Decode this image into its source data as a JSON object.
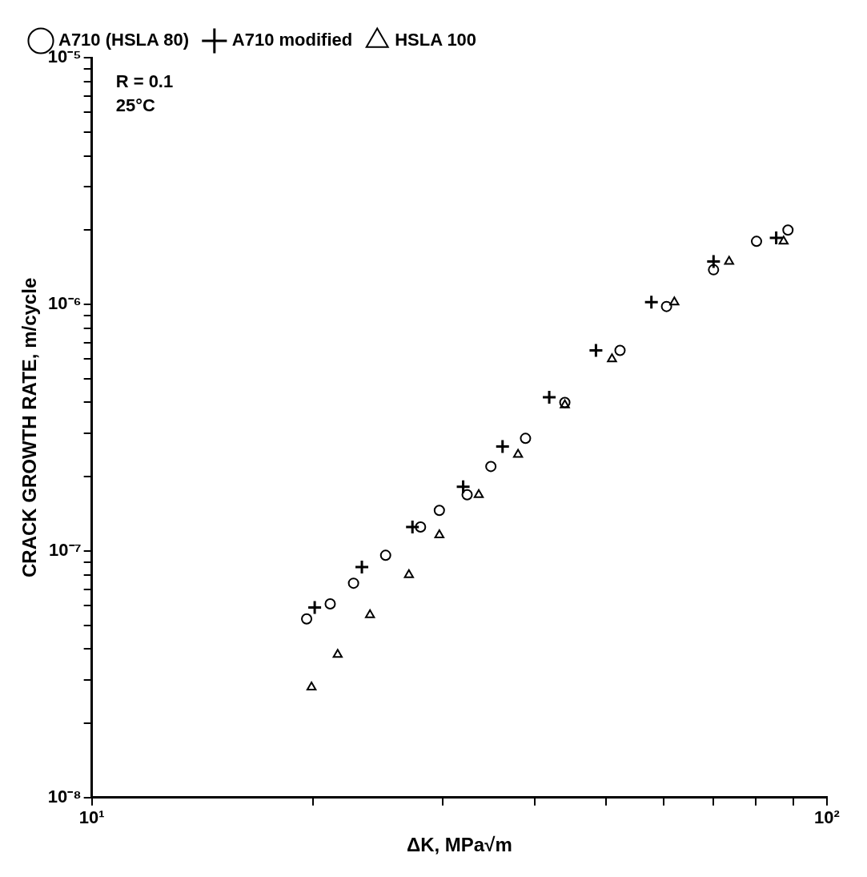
{
  "chart_data": {
    "type": "scatter",
    "xlabel": "ΔK, MPa√m",
    "ylabel": "CRACK GROWTH RATE, m/cycle",
    "log": "xy",
    "grid": false,
    "legend": "top left",
    "xlim": [
      10,
      100
    ],
    "xticks": [
      {
        "value": 10,
        "label": "10¹"
      },
      {
        "value": 20,
        "label": null
      },
      {
        "value": 30,
        "label": null
      },
      {
        "value": 40,
        "label": null
      },
      {
        "value": 50,
        "label": null
      },
      {
        "value": 60,
        "label": null
      },
      {
        "value": 70,
        "label": null
      },
      {
        "value": 80,
        "label": null
      },
      {
        "value": 90,
        "label": null
      },
      {
        "value": 100,
        "label": "10²"
      }
    ],
    "ylim": [
      1e-08,
      1e-05
    ],
    "yticks": [
      {
        "value": 1e-08,
        "label": "10⁻⁸"
      },
      {
        "value": 2e-08,
        "label": null
      },
      {
        "value": 3e-08,
        "label": null
      },
      {
        "value": 4e-08,
        "label": null
      },
      {
        "value": 5e-08,
        "label": null
      },
      {
        "value": 6e-08,
        "label": null
      },
      {
        "value": 7e-08,
        "label": null
      },
      {
        "value": 8e-08,
        "label": null
      },
      {
        "value": 9e-08,
        "label": null
      },
      {
        "value": 1e-07,
        "label": "10⁻⁷"
      },
      {
        "value": 2e-07,
        "label": null
      },
      {
        "value": 3e-07,
        "label": null
      },
      {
        "value": 4e-07,
        "label": null
      },
      {
        "value": 5e-07,
        "label": null
      },
      {
        "value": 6e-07,
        "label": null
      },
      {
        "value": 7e-07,
        "label": null
      },
      {
        "value": 8e-07,
        "label": null
      },
      {
        "value": 9e-07,
        "label": null
      },
      {
        "value": 1e-06,
        "label": "10⁻⁶"
      },
      {
        "value": 2e-06,
        "label": null
      },
      {
        "value": 3e-06,
        "label": null
      },
      {
        "value": 4e-06,
        "label": null
      },
      {
        "value": 5e-06,
        "label": null
      },
      {
        "value": 6e-06,
        "label": null
      },
      {
        "value": 7e-06,
        "label": null
      },
      {
        "value": 8e-06,
        "label": null
      },
      {
        "value": 9e-06,
        "label": null
      },
      {
        "value": 1e-05,
        "label": "10⁻⁵"
      }
    ],
    "annotations": [
      "R = 0.1",
      "25°C"
    ],
    "series": [
      {
        "name": "A710 (HSLA 80)",
        "color": "#000000",
        "marker": "circle",
        "x": [
          19.6,
          21.1,
          22.7,
          25.1,
          28.0,
          29.7,
          32.4,
          34.9,
          38.9,
          44.0,
          52.3,
          60.5,
          70.1,
          80.2,
          88.5
        ],
        "values": [
          5.3e-08,
          6.1e-08,
          7.4e-08,
          9.6e-08,
          1.25e-07,
          1.46e-07,
          1.69e-07,
          2.2e-07,
          2.86e-07,
          4e-07,
          6.5e-07,
          9.8e-07,
          1.38e-06,
          1.8e-06,
          2e-06
        ]
      },
      {
        "name": "A710 modified",
        "color": "#000000",
        "marker": "cross",
        "x": [
          20.1,
          23.3,
          27.3,
          32.0,
          36.2,
          41.9,
          48.5,
          57.7,
          70.1,
          85.3
        ],
        "values": [
          5.9e-08,
          8.6e-08,
          1.25e-07,
          1.82e-07,
          2.65e-07,
          4.2e-07,
          6.5e-07,
          1.02e-06,
          1.49e-06,
          1.86e-06
        ]
      },
      {
        "name": "HSLA 100",
        "color": "#000000",
        "marker": "triangle",
        "x": [
          19.9,
          21.6,
          23.9,
          27.0,
          29.7,
          33.6,
          38.0,
          44.0,
          51.0,
          62.0,
          73.6,
          87.3
        ],
        "values": [
          2.8e-08,
          3.8e-08,
          5.5e-08,
          8e-08,
          1.16e-07,
          1.69e-07,
          2.46e-07,
          3.9e-07,
          6e-07,
          1.02e-06,
          1.49e-06,
          1.8e-06
        ]
      }
    ]
  }
}
